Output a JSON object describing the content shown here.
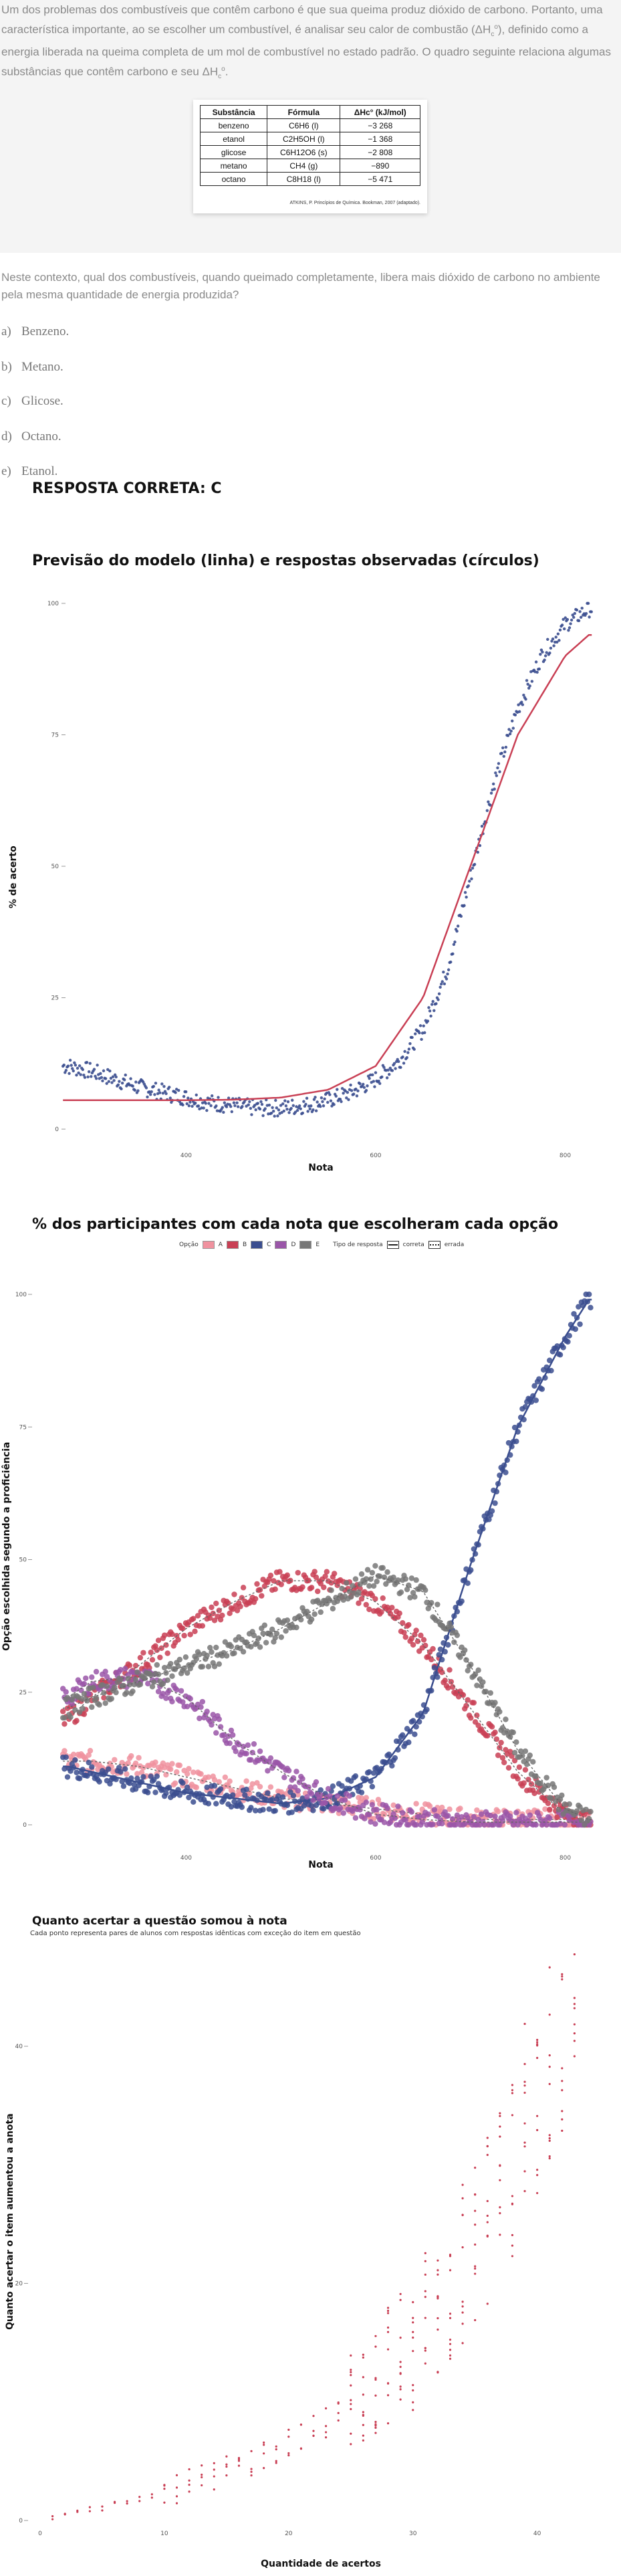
{
  "question": {
    "stem": {
      "part1": "Um dos problemas dos combustíveis que contêm carbono é que sua queima produz dióxido de carbono. Portanto, uma característica importante, ao se escolher um combustível, é analisar seu calor de combustão (",
      "dh_symbol": "ΔH",
      "dh_sub": "c",
      "dh_sup": "o",
      "part2": "), definido como a energia liberada na queima completa de um mol de combustível no estado padrão. O quadro seguinte relaciona algumas substâncias que contêm carbono e seu ΔH",
      "part3": "."
    },
    "table": {
      "headers": [
        "Substância",
        "Fórmula",
        "ΔHc° (kJ/mol)"
      ],
      "rows": [
        [
          "benzeno",
          "C6H6 (l)",
          "−3 268"
        ],
        [
          "etanol",
          "C2H5OH (l)",
          "−1 368"
        ],
        [
          "glicose",
          "C6H12O6 (s)",
          "−2 808"
        ],
        [
          "metano",
          "CH4 (g)",
          "−890"
        ],
        [
          "octano",
          "C8H18 (l)",
          "−5 471"
        ]
      ],
      "source": "ATKINS, P. Princípios de Química. Bookman, 2007 (adaptado)."
    },
    "prompt": "Neste contexto, qual dos combustíveis, quando queimado completamente, libera mais dióxido de carbono no ambiente pela mesma quantidade de energia produzida?",
    "options": [
      {
        "letter": "a)",
        "text": "Benzeno."
      },
      {
        "letter": "b)",
        "text": "Metano."
      },
      {
        "letter": "c)",
        "text": "Glicose."
      },
      {
        "letter": "d)",
        "text": "Octano."
      },
      {
        "letter": "e)",
        "text": "Etanol."
      }
    ]
  },
  "answer_label": "RESPOSTA CORRETA: C",
  "colors": {
    "blue": "#3b4e8f",
    "red": "#c94055",
    "pink": "#f0929f",
    "purple": "#9a56a8",
    "gray": "#777777"
  },
  "chart1": {
    "title": "Previsão do modelo (linha) e respostas observadas (círculos)",
    "ylabel": "% de acerto",
    "xlabel": "Nota",
    "yticks": [
      "0",
      "25",
      "50",
      "75",
      "100"
    ],
    "xticks": [
      "400",
      "600",
      "800"
    ]
  },
  "chart2": {
    "title": "% dos participantes com cada nota que escolheram cada opção",
    "ylabel": "Opção escolhida segundo a proficiência",
    "xlabel": "Nota",
    "yticks": [
      "0",
      "25",
      "50",
      "75",
      "100"
    ],
    "xticks": [
      "400",
      "600",
      "800"
    ],
    "legend": {
      "option_title": "Opção",
      "options": [
        "A",
        "B",
        "C",
        "D",
        "E"
      ],
      "type_title": "Tipo de resposta",
      "types": [
        "correta",
        "errada"
      ]
    }
  },
  "chart3": {
    "title": "Quanto acertar a questão somou à nota",
    "subtitle": "Cada ponto representa pares de alunos com respostas idênticas com exceção do item em questão",
    "ylabel": "Quanto acertar o item aumentou a anota",
    "xlabel": "Quantidade de acertos",
    "yticks": [
      "0",
      "20",
      "40"
    ],
    "xticks": [
      "0",
      "10",
      "20",
      "30",
      "40"
    ]
  },
  "chart_data": [
    {
      "type": "line",
      "title": "Previsão do modelo (linha) e respostas observadas (círculos)",
      "xlabel": "Nota",
      "ylabel": "% de acerto",
      "xlim": [
        260,
        830
      ],
      "ylim": [
        0,
        100
      ],
      "series": [
        {
          "kind": "observed",
          "x": [
            275,
            300,
            325,
            350,
            375,
            400,
            425,
            450,
            475,
            500,
            525,
            550,
            575,
            600,
            625,
            650,
            675,
            700,
            725,
            750,
            775,
            800,
            825
          ],
          "y": [
            12,
            11,
            9.5,
            8,
            7,
            6,
            5,
            4.5,
            4,
            4,
            4.5,
            5.5,
            7,
            9.5,
            13,
            19,
            30,
            48,
            66,
            80,
            90,
            96,
            99
          ]
        },
        {
          "kind": "model",
          "x": [
            275,
            300,
            350,
            400,
            450,
            500,
            550,
            600,
            650,
            700,
            750,
            800,
            825
          ],
          "y": [
            5.5,
            5.5,
            5.5,
            5.5,
            5.6,
            6,
            7.5,
            12,
            25,
            50,
            75,
            90,
            94
          ]
        }
      ]
    },
    {
      "type": "scatter",
      "title": "% dos participantes com cada nota que escolheram cada opção",
      "xlabel": "Nota",
      "ylabel": "Opção escolhida segundo a proficiência",
      "xlim": [
        260,
        830
      ],
      "ylim": [
        0,
        100
      ],
      "x": [
        275,
        300,
        350,
        400,
        450,
        500,
        550,
        600,
        650,
        700,
        750,
        800,
        825
      ],
      "series": [
        {
          "name": "A",
          "values": [
            12,
            12,
            11,
            9,
            7,
            5,
            4,
            3,
            2,
            1,
            1,
            1,
            0.5
          ]
        },
        {
          "name": "B",
          "values": [
            20,
            24,
            30,
            37,
            42,
            46,
            46,
            42,
            34,
            22,
            10,
            2,
            0.5
          ]
        },
        {
          "name": "C",
          "values": [
            11,
            10,
            8,
            6,
            5,
            4,
            5,
            9,
            21,
            49,
            75,
            92,
            99
          ]
        },
        {
          "name": "D",
          "values": [
            24,
            27,
            28,
            24,
            16,
            10,
            5,
            2,
            1,
            0.5,
            0.5,
            0.5,
            0.5
          ]
        },
        {
          "name": "E",
          "values": [
            22,
            24,
            27,
            30,
            33,
            37,
            42,
            47,
            44,
            30,
            14,
            3,
            1
          ]
        }
      ]
    },
    {
      "type": "scatter",
      "title": "Quanto acertar a questão somou à nota",
      "xlabel": "Quantidade de acertos",
      "ylabel": "Quanto acertar o item aumentou a anota",
      "xlim": [
        0,
        44
      ],
      "ylim": [
        0,
        47
      ],
      "x": [
        1,
        2,
        3,
        4,
        5,
        6,
        7,
        8,
        9,
        10,
        11,
        12,
        13,
        14,
        15,
        16,
        17,
        18,
        19,
        20,
        21,
        22,
        23,
        24,
        25,
        26,
        27,
        28,
        29,
        30,
        31,
        32,
        33,
        34,
        35,
        36,
        37,
        38,
        39,
        40,
        41,
        42,
        43
      ],
      "y": [
        0.3,
        0.5,
        0.7,
        0.9,
        1.1,
        1.4,
        1.6,
        1.9,
        2.2,
        2.5,
        2.8,
        3.2,
        3.5,
        3.8,
        4.2,
        4.6,
        5.0,
        5.5,
        6.0,
        6.5,
        7.0,
        7.5,
        8.2,
        9.0,
        10,
        11,
        12,
        13,
        14,
        15,
        17,
        18,
        20,
        22,
        24,
        26,
        28,
        30,
        33,
        36,
        39,
        42,
        45
      ]
    }
  ]
}
